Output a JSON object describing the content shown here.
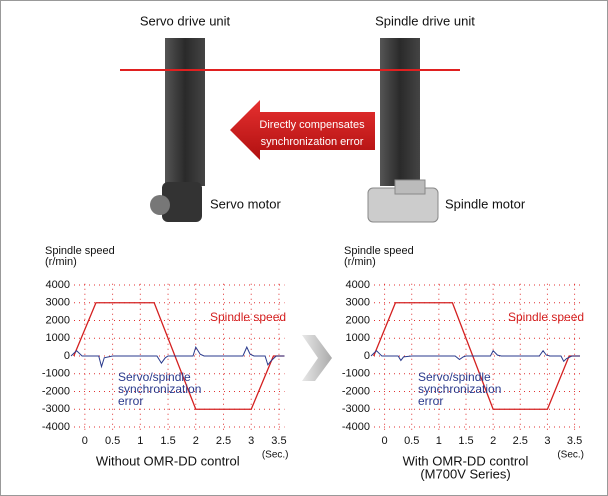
{
  "diagram": {
    "servo_unit": "Servo drive unit",
    "spindle_unit": "Spindle drive unit",
    "arrow_text": [
      "Directly compensates",
      "synchronization error"
    ],
    "servo_motor": "Servo motor",
    "spindle_motor": "Spindle motor"
  },
  "chart_data": [
    {
      "type": "line",
      "ylabel": "Spindle speed",
      "ylabel_unit": "(r/min)",
      "xlabel": [
        "Without OMR-DD control"
      ],
      "xlabel_unit": "(Sec.)",
      "xlim": [
        -0.25,
        3.6
      ],
      "xticks": [
        0,
        0.5,
        1,
        1.5,
        2,
        2.5,
        3,
        3.5
      ],
      "ylim": [
        -4300,
        4300
      ],
      "yticks": [
        4000,
        3000,
        2000,
        1000,
        0,
        -1000,
        -2000,
        -3000,
        -4000
      ],
      "grid": true,
      "grid_color": "#e03030",
      "series": [
        {
          "name": [
            "Spindle speed"
          ],
          "color": "#d42020",
          "x": [
            -0.2,
            0.2,
            1.25,
            2.0,
            3.0,
            3.4,
            3.6
          ],
          "values": [
            0,
            3000,
            3000,
            -3000,
            -3000,
            0,
            0
          ]
        },
        {
          "name": [
            "Servo/spindle",
            "synchronization",
            "error"
          ],
          "color": "#2a3a8c",
          "x": [
            -0.25,
            -0.15,
            -0.05,
            0.1,
            0.25,
            0.3,
            0.35,
            0.5,
            1.3,
            1.38,
            1.45,
            1.5,
            1.95,
            2.0,
            2.08,
            2.15,
            2.85,
            2.92,
            2.98,
            3.05,
            3.25,
            3.3,
            3.35,
            3.45,
            3.6
          ],
          "values": [
            0,
            300,
            0,
            0,
            0,
            -600,
            -100,
            0,
            0,
            -400,
            -100,
            0,
            0,
            500,
            100,
            0,
            0,
            500,
            100,
            0,
            0,
            -500,
            -300,
            0,
            0
          ]
        }
      ]
    },
    {
      "type": "line",
      "ylabel": "Spindle speed",
      "ylabel_unit": "(r/min)",
      "xlabel": [
        "With OMR-DD control",
        "(M700V Series)"
      ],
      "xlabel_unit": "(Sec.)",
      "xlim": [
        -0.25,
        3.6
      ],
      "xticks": [
        0,
        0.5,
        1,
        1.5,
        2,
        2.5,
        3,
        3.5
      ],
      "ylim": [
        -4300,
        4300
      ],
      "yticks": [
        4000,
        3000,
        2000,
        1000,
        0,
        -1000,
        -2000,
        -3000,
        -4000
      ],
      "grid": true,
      "grid_color": "#e03030",
      "series": [
        {
          "name": [
            "Spindle speed"
          ],
          "color": "#d42020",
          "x": [
            -0.2,
            0.2,
            1.25,
            2.0,
            3.0,
            3.4,
            3.6
          ],
          "values": [
            0,
            3000,
            3000,
            -3000,
            -3000,
            0,
            0
          ]
        },
        {
          "name": [
            "Servo/spindle",
            "synchronization",
            "error"
          ],
          "color": "#2a3a8c",
          "x": [
            -0.25,
            -0.15,
            -0.05,
            0.1,
            0.25,
            0.3,
            0.35,
            0.5,
            1.3,
            1.38,
            1.45,
            1.5,
            1.95,
            2.0,
            2.08,
            2.15,
            2.85,
            2.92,
            2.98,
            3.05,
            3.25,
            3.3,
            3.35,
            3.45,
            3.6
          ],
          "values": [
            0,
            300,
            0,
            0,
            0,
            -250,
            -50,
            0,
            0,
            -200,
            -50,
            0,
            0,
            300,
            50,
            0,
            0,
            300,
            50,
            0,
            0,
            -300,
            -150,
            0,
            0
          ]
        }
      ]
    }
  ]
}
